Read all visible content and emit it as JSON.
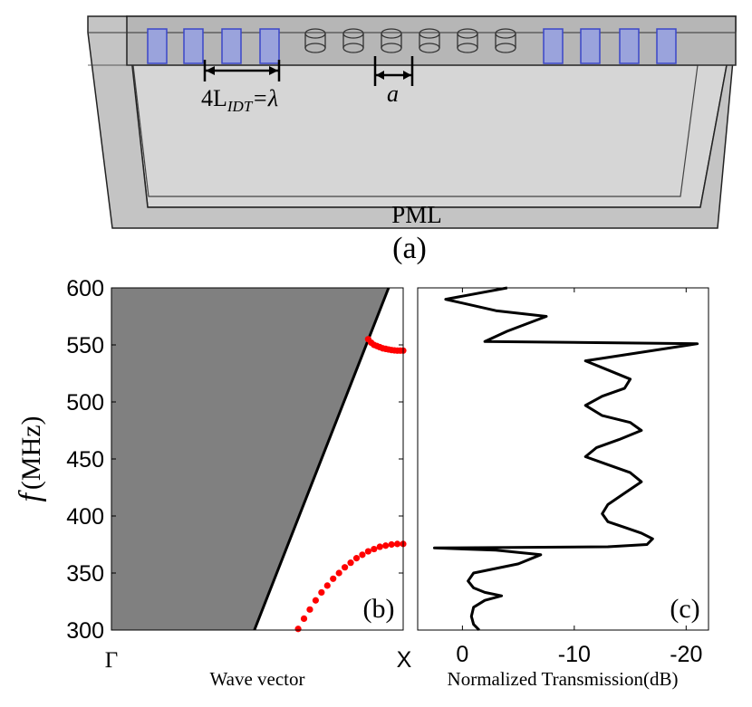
{
  "device": {
    "label_idt_base": "4L",
    "label_idt_sub": "IDT",
    "label_idt_eq": "=λ",
    "label_a": "a",
    "label_pml": "PML",
    "label_panel": "(a)",
    "n_idt_left": 4,
    "n_pillars": 6,
    "n_idt_right": 4
  },
  "chart_data": [
    {
      "panel": "(b)",
      "type": "scatter",
      "ylabel_symbol": "f",
      "ylabel_unit": "(MHz)",
      "xlabel": "Wave vector",
      "x_tick_labels": [
        "Γ",
        "X"
      ],
      "xlim": [
        0,
        1
      ],
      "ylim": [
        300,
        600
      ],
      "y_ticks": [
        300,
        350,
        400,
        450,
        500,
        550,
        600
      ],
      "colors": {
        "sound_cone": "#808080",
        "bands": "#ff0000",
        "line": "#000000"
      },
      "sound_line": {
        "x": [
          0.49,
          0.95
        ],
        "y": [
          300,
          600
        ]
      },
      "upper_band": {
        "x": [
          0.88,
          0.89,
          0.9,
          0.91,
          0.92,
          0.93,
          0.94,
          0.95,
          0.96,
          0.97,
          0.98,
          0.99,
          1.0
        ],
        "y": [
          555,
          552,
          550,
          549,
          548,
          547,
          546.5,
          546,
          545.5,
          545.2,
          545,
          545,
          545
        ]
      },
      "lower_band": {
        "x": [
          0.64,
          0.66,
          0.68,
          0.7,
          0.72,
          0.74,
          0.76,
          0.78,
          0.8,
          0.82,
          0.84,
          0.86,
          0.88,
          0.9,
          0.92,
          0.94,
          0.96,
          0.98,
          1.0
        ],
        "y": [
          301,
          310,
          318,
          326,
          333,
          339,
          345,
          350,
          355,
          359,
          363,
          366,
          369,
          371,
          373,
          374,
          375,
          375.5,
          375.5
        ]
      }
    },
    {
      "panel": "(c)",
      "type": "line",
      "xlabel": "Normalized Transmission(dB)",
      "xlim": [
        4,
        -22
      ],
      "ylim": [
        300,
        600
      ],
      "x_ticks": [
        0,
        -10,
        -20
      ],
      "x_tick_labels": [
        "0",
        "-10",
        "-20"
      ],
      "colors": {
        "line": "#000000"
      },
      "curve": {
        "x": [
          -1.5,
          -1.0,
          -0.8,
          -1.0,
          -2.0,
          -3.5,
          -2.0,
          -1.0,
          -0.5,
          -1.0,
          -5.0,
          -7.0,
          -3.0,
          2.5,
          -13.0,
          -16.5,
          -17.0,
          -16.0,
          -14.5,
          -13.0,
          -12.5,
          -13.0,
          -14.5,
          -16.0,
          -15.0,
          -13.0,
          -11.0,
          -12.0,
          -14.0,
          -16.0,
          -15.0,
          -12.5,
          -11.0,
          -12.5,
          -14.5,
          -15.0,
          -13.0,
          -11.0,
          -21.0,
          -2.0,
          -4.0,
          -7.5,
          -3.0,
          1.5,
          -4.0
        ],
        "y": [
          300,
          305,
          312,
          320,
          326,
          330,
          333,
          337,
          343,
          350,
          358,
          366,
          370,
          372,
          373,
          375,
          380,
          385,
          390,
          395,
          402,
          410,
          420,
          430,
          438,
          445,
          452,
          460,
          467,
          475,
          482,
          488,
          497,
          505,
          512,
          520,
          528,
          536,
          551,
          553,
          562,
          575,
          580,
          590,
          600
        ]
      }
    }
  ]
}
